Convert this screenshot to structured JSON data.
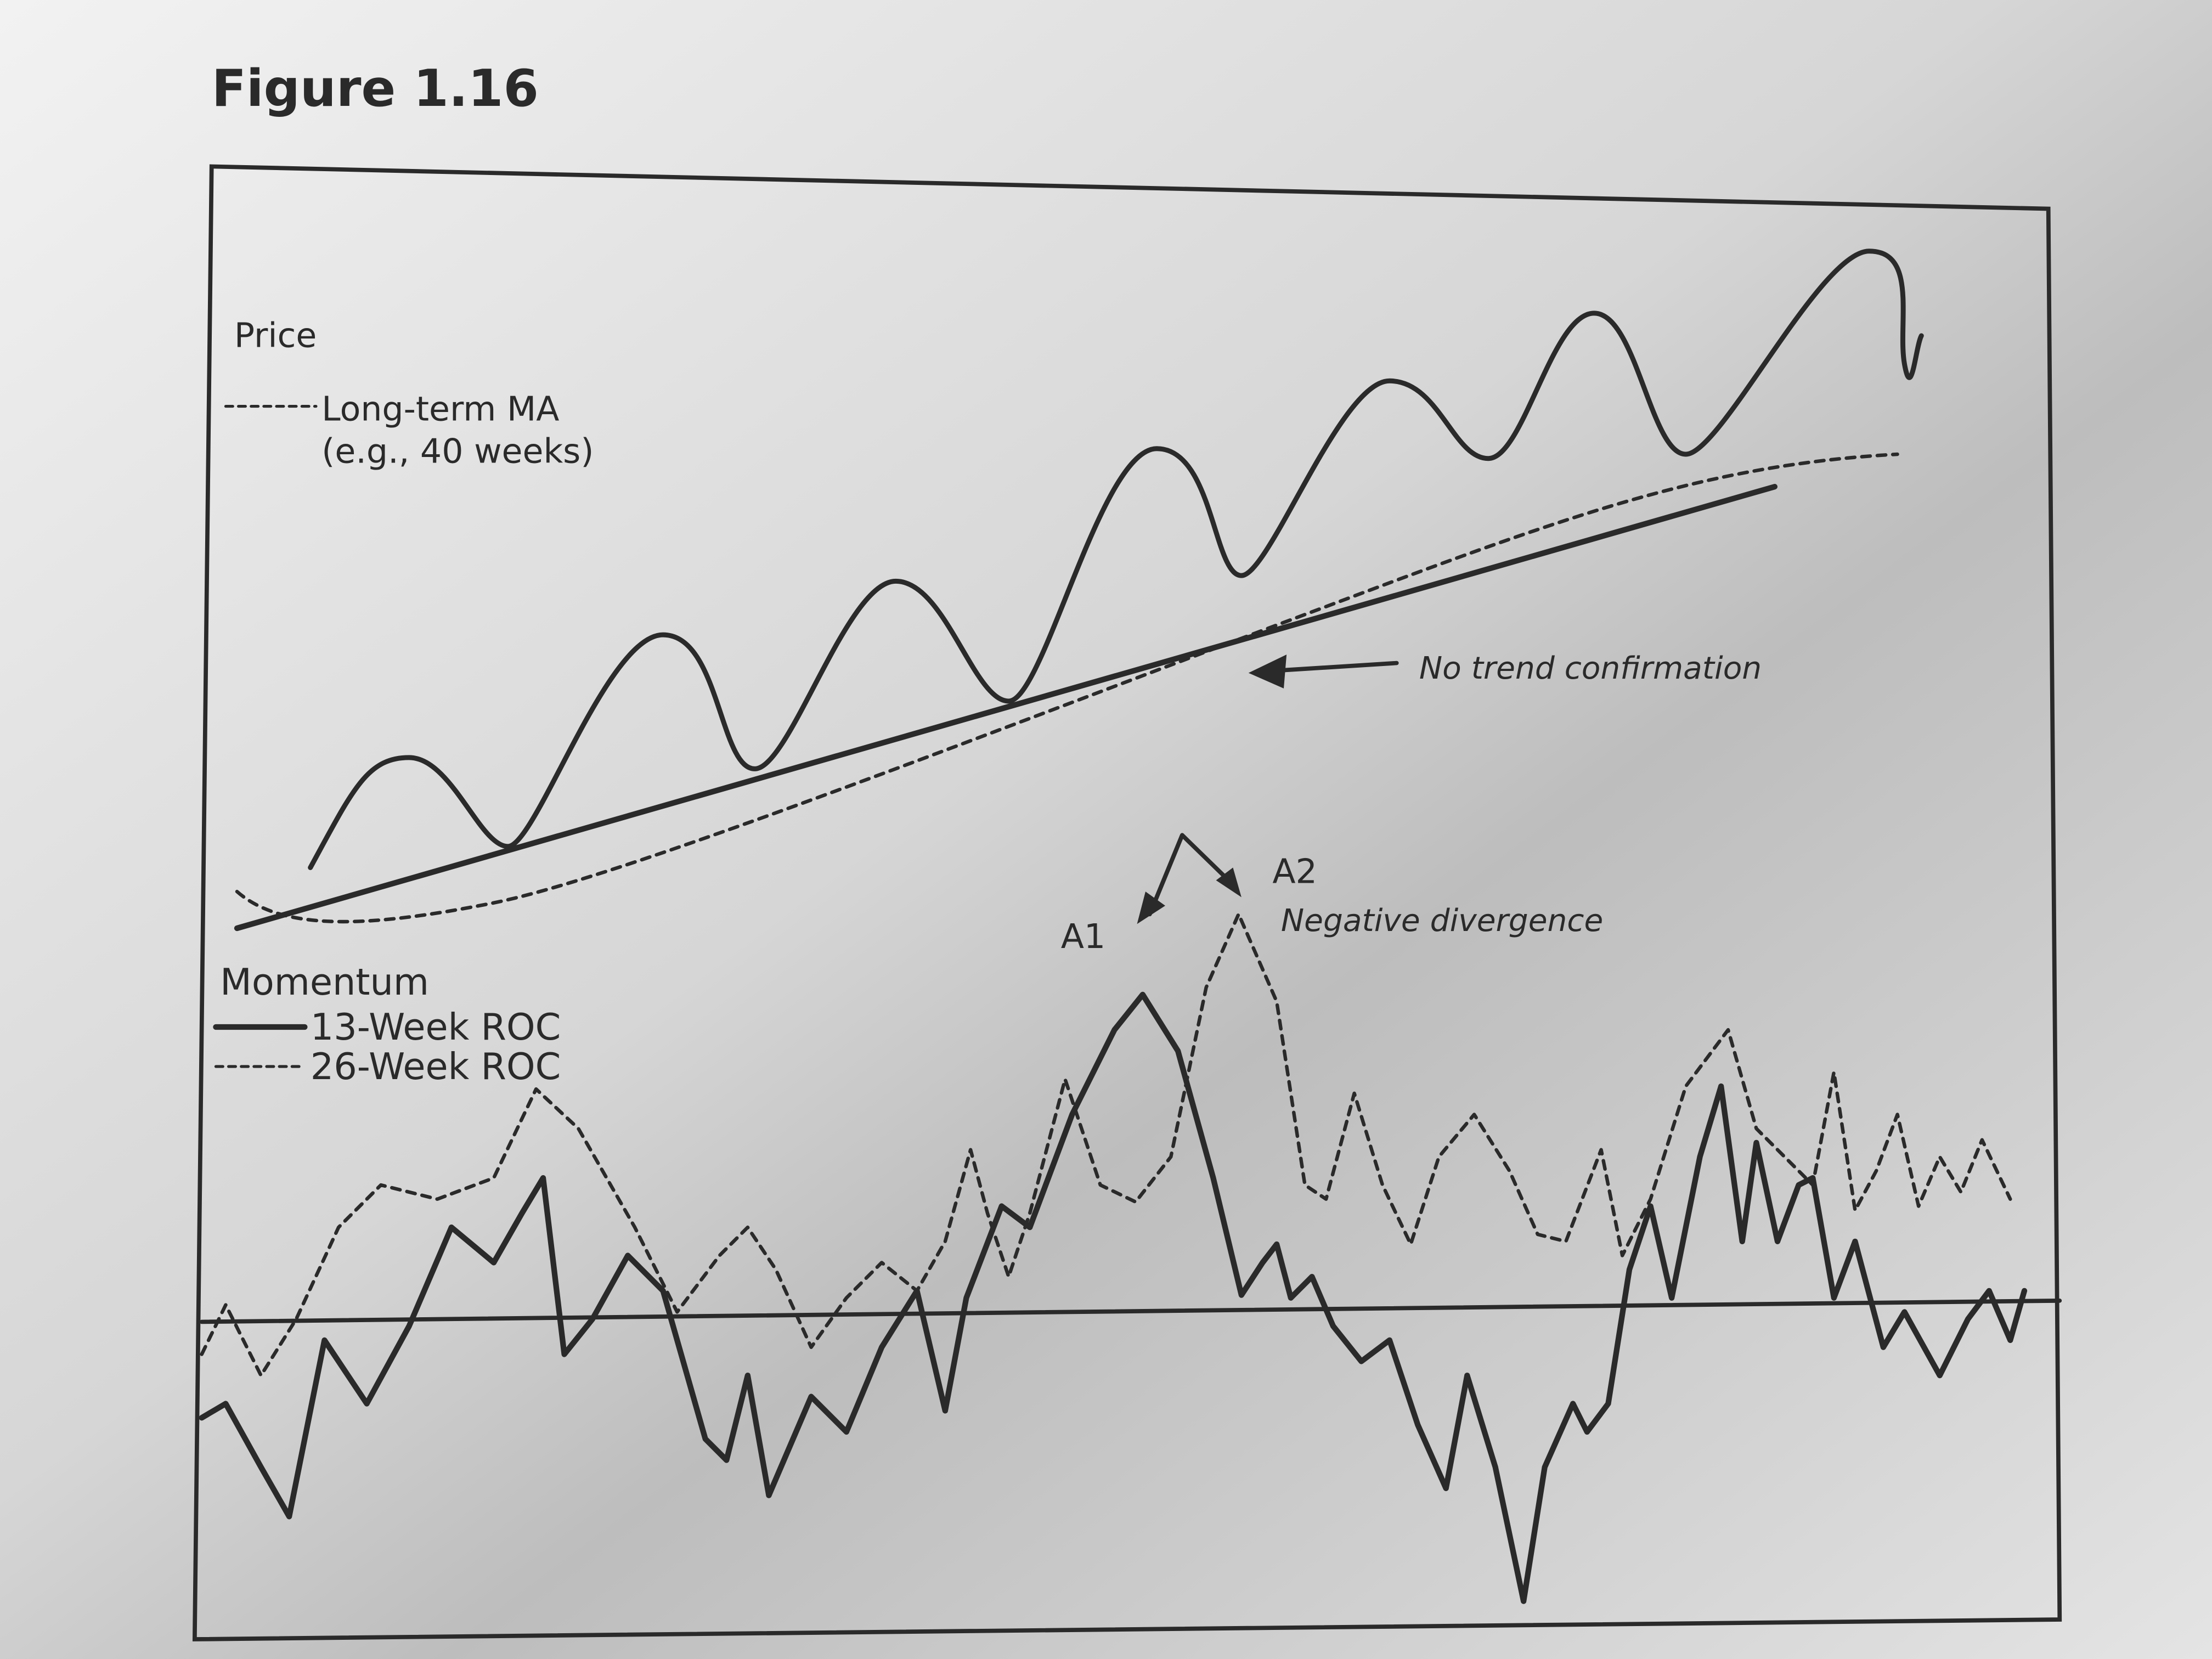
{
  "header": {
    "title": "Figure 1.16"
  },
  "price_panel": {
    "label": "Price",
    "ma_legend": "Long-term MA",
    "ma_note": "(e.g., 40 weeks)",
    "annotation": "No trend confirmation"
  },
  "momentum_panel": {
    "label": "Momentum",
    "legend": [
      "13-Week ROC",
      "26-Week ROC"
    ],
    "peaks": [
      "A1",
      "A2"
    ],
    "annotation": "Negative divergence"
  }
}
